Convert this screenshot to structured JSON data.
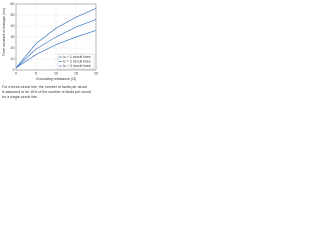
{
  "chart_data": {
    "type": "line",
    "x_label": "Grounding resistance (Ω)",
    "y_label": "Time constant of leakage (ms)",
    "x": [
      0,
      5,
      10,
      15,
      20
    ],
    "xlim": [
      0,
      20
    ],
    "xticks": [
      0,
      5,
      10,
      15,
      20
    ],
    "ylim": [
      0,
      60
    ],
    "yticks": [
      0,
      10,
      20,
      30,
      40,
      50,
      60
    ],
    "grid": true,
    "legend": "lower-right",
    "series": [
      {
        "name": "Ic = 1 circuit lines",
        "color": "#3a78c2",
        "values": [
          2,
          24,
          38,
          48,
          56
        ]
      },
      {
        "name": "Ic = 2 circuit lines",
        "color": "#3a78c2",
        "values": [
          2,
          19,
          30,
          39,
          46
        ]
      },
      {
        "name": "Ic = 3 circuit lines",
        "color": "#3a78c2",
        "values": [
          2,
          14,
          23,
          30,
          36
        ]
      }
    ],
    "notes": [
      "For a three-circuit line, the number of faults per circuit",
      "is assumed to be 10% of the number of faults per circuit",
      "for a single-circuit line."
    ]
  }
}
